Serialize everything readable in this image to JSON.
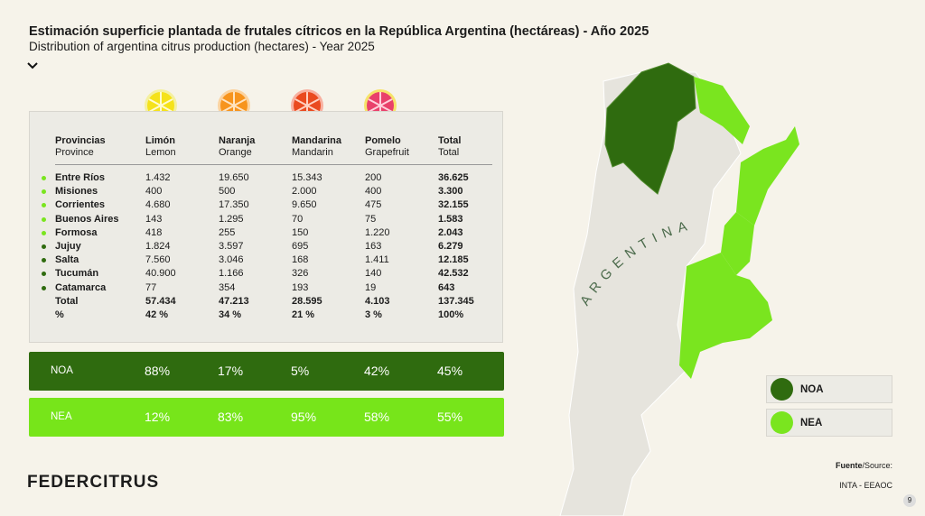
{
  "header": {
    "title": "Estimación superficie plantada de frutales cítricos en la República Argentina (hectáreas) - Año 2025",
    "subtitle": "Distribution of argentina citrus production (hectares) - Year 2025"
  },
  "table": {
    "columns": [
      [
        "Provincias",
        "Province"
      ],
      [
        "Limón",
        "Lemon"
      ],
      [
        "Naranja",
        "Orange"
      ],
      [
        "Mandarina",
        "Mandarin"
      ],
      [
        "Pomelo",
        "Grapefruit"
      ],
      [
        "Total",
        "Total"
      ]
    ],
    "rows": [
      [
        "Entre Ríos",
        "1.432",
        "19.650",
        "15.343",
        "200",
        "36.625"
      ],
      [
        "Misiones",
        "400",
        "500",
        "2.000",
        "400",
        "3.300"
      ],
      [
        "Corrientes",
        "4.680",
        "17.350",
        "9.650",
        "475",
        "32.155"
      ],
      [
        "Buenos Aires",
        "143",
        "1.295",
        "70",
        "75",
        "1.583"
      ],
      [
        "Formosa",
        "418",
        "255",
        "150",
        "1.220",
        "2.043"
      ],
      [
        "Jujuy",
        "1.824",
        "3.597",
        "695",
        "163",
        "6.279"
      ],
      [
        "Salta",
        "7.560",
        "3.046",
        "168",
        "1.411",
        "12.185"
      ],
      [
        "Tucumán",
        "40.900",
        "1.166",
        "326",
        "140",
        "42.532"
      ],
      [
        "Catamarca",
        "77",
        "354",
        "193",
        "19",
        "643"
      ]
    ],
    "total": [
      "Total",
      "57.434",
      "47.213",
      "28.595",
      "4.103",
      "137.345"
    ],
    "percent": [
      "%",
      "42 %",
      "34 %",
      "21 %",
      "3 %",
      "100%"
    ]
  },
  "regions": [
    [
      "NOA",
      "88%",
      "17%",
      "5%",
      "42%",
      "45%"
    ],
    [
      "NEA",
      "12%",
      "83%",
      "95%",
      "58%",
      "55%"
    ]
  ],
  "map": {
    "label": "ARGENTINA",
    "legend": [
      "NOA",
      "NEA"
    ]
  },
  "footer": {
    "logo": "FEDERCITRUS",
    "source_label": "Fuente",
    "source_label_en": "/Source:",
    "source": "INTA - EEAOC",
    "page": "9"
  }
}
